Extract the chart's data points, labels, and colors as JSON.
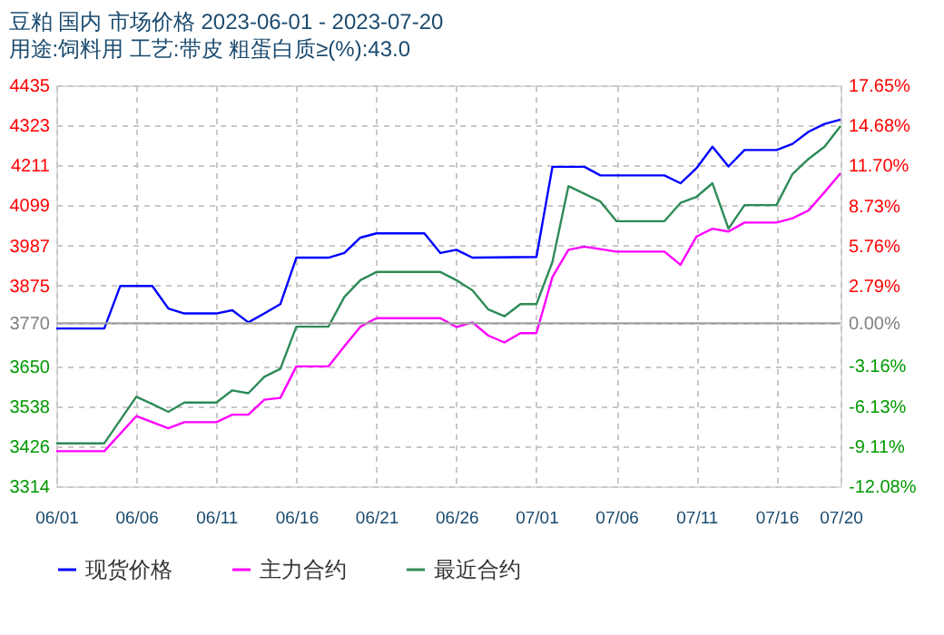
{
  "chart_data": {
    "type": "line",
    "title": "豆粕 国内 市场价格 2023-06-01 - 2023-07-20",
    "subtitle": "用途:饲料用 工艺:带皮 粗蛋白质≥(%):43.0",
    "series": [
      {
        "name": "现货价格",
        "color": "#0000ff",
        "x": [
          "2023-06-01",
          "2023-06-04",
          "2023-06-05",
          "2023-06-07",
          "2023-06-08",
          "2023-06-09",
          "2023-06-11",
          "2023-06-12",
          "2023-06-13",
          "2023-06-14",
          "2023-06-15",
          "2023-06-16",
          "2023-06-18",
          "2023-06-19",
          "2023-06-20",
          "2023-06-21",
          "2023-06-24",
          "2023-06-25",
          "2023-06-26",
          "2023-06-27",
          "2023-07-01",
          "2023-07-02",
          "2023-07-04",
          "2023-07-05",
          "2023-07-09",
          "2023-07-10",
          "2023-07-11",
          "2023-07-12",
          "2023-07-13",
          "2023-07-14",
          "2023-07-16",
          "2023-07-17",
          "2023-07-18",
          "2023-07-19",
          "2023-07-20"
        ],
        "values": [
          3755,
          3755,
          3874,
          3874,
          3811,
          3797,
          3797,
          3806,
          3772,
          3797,
          3823,
          3953,
          3953,
          3966,
          4009,
          4021,
          4021,
          3966,
          3975,
          3953,
          3955,
          4207,
          4207,
          4183,
          4183,
          4161,
          4203,
          4263,
          4208,
          4254,
          4254,
          4271,
          4305,
          4327,
          4339
        ]
      },
      {
        "name": "主力合约",
        "color": "#ff00ff",
        "x": [
          "2023-06-01",
          "2023-06-04",
          "2023-06-06",
          "2023-06-07",
          "2023-06-08",
          "2023-06-09",
          "2023-06-11",
          "2023-06-12",
          "2023-06-13",
          "2023-06-14",
          "2023-06-15",
          "2023-06-16",
          "2023-06-18",
          "2023-06-19",
          "2023-06-20",
          "2023-06-21",
          "2023-06-25",
          "2023-06-26",
          "2023-06-27",
          "2023-06-28",
          "2023-06-29",
          "2023-06-30",
          "2023-07-01",
          "2023-07-02",
          "2023-07-03",
          "2023-07-04",
          "2023-07-06",
          "2023-07-09",
          "2023-07-10",
          "2023-07-11",
          "2023-07-12",
          "2023-07-13",
          "2023-07-14",
          "2023-07-16",
          "2023-07-17",
          "2023-07-18",
          "2023-07-19",
          "2023-07-20"
        ],
        "values": [
          3412,
          3412,
          3510,
          3493,
          3476,
          3493,
          3493,
          3514,
          3514,
          3556,
          3561,
          3649,
          3649,
          3705,
          3760,
          3784,
          3784,
          3759,
          3772,
          3735,
          3716,
          3742,
          3742,
          3899,
          3975,
          3984,
          3970,
          3970,
          3933,
          4012,
          4034,
          4026,
          4051,
          4051,
          4063,
          4085,
          4136,
          4189
        ]
      },
      {
        "name": "最近合约",
        "color": "#2e8b57",
        "x": [
          "2023-06-01",
          "2023-06-04",
          "2023-06-06",
          "2023-06-07",
          "2023-06-08",
          "2023-06-09",
          "2023-06-11",
          "2023-06-12",
          "2023-06-13",
          "2023-06-14",
          "2023-06-15",
          "2023-06-16",
          "2023-06-18",
          "2023-06-19",
          "2023-06-20",
          "2023-06-21",
          "2023-06-25",
          "2023-06-26",
          "2023-06-27",
          "2023-06-28",
          "2023-06-29",
          "2023-06-30",
          "2023-07-01",
          "2023-07-02",
          "2023-07-03",
          "2023-07-05",
          "2023-07-06",
          "2023-07-09",
          "2023-07-10",
          "2023-07-11",
          "2023-07-12",
          "2023-07-13",
          "2023-07-14",
          "2023-07-16",
          "2023-07-17",
          "2023-07-18",
          "2023-07-19",
          "2023-07-20"
        ],
        "values": [
          3434,
          3434,
          3564,
          3544,
          3522,
          3548,
          3548,
          3582,
          3574,
          3620,
          3642,
          3760,
          3760,
          3843,
          3890,
          3913,
          3913,
          3890,
          3862,
          3808,
          3789,
          3823,
          3823,
          3941,
          4153,
          4110,
          4055,
          4055,
          4106,
          4123,
          4161,
          4034,
          4100,
          4100,
          4187,
          4229,
          4263,
          4321
        ]
      }
    ],
    "xlim": [
      "2023-06-01",
      "2023-07-20"
    ],
    "xticks": [
      {
        "value": "2023-06-01",
        "label": "06/01"
      },
      {
        "value": "2023-06-06",
        "label": "06/06"
      },
      {
        "value": "2023-06-11",
        "label": "06/11"
      },
      {
        "value": "2023-06-16",
        "label": "06/16"
      },
      {
        "value": "2023-06-21",
        "label": "06/21"
      },
      {
        "value": "2023-06-26",
        "label": "06/26"
      },
      {
        "value": "2023-07-01",
        "label": "07/01"
      },
      {
        "value": "2023-07-06",
        "label": "07/06"
      },
      {
        "value": "2023-07-11",
        "label": "07/11"
      },
      {
        "value": "2023-07-16",
        "label": "07/16"
      },
      {
        "value": "2023-07-20",
        "label": "07/20"
      }
    ],
    "ylim": [
      3314,
      4435
    ],
    "yticks": [
      3314,
      3426,
      3538,
      3650,
      3770,
      3875,
      3987,
      4099,
      4211,
      4323,
      4435
    ],
    "y2lim": [
      -12.08,
      17.65
    ],
    "y2ticks": [
      {
        "value": -12.08,
        "label": "-12.08%"
      },
      {
        "value": -9.11,
        "label": "-9.11%"
      },
      {
        "value": -6.13,
        "label": "-6.13%"
      },
      {
        "value": -3.16,
        "label": "-3.16%"
      },
      {
        "value": 0,
        "label": "0.00%"
      },
      {
        "value": 2.79,
        "label": "2.79%"
      },
      {
        "value": 5.76,
        "label": "5.76%"
      },
      {
        "value": 8.73,
        "label": "8.73%"
      },
      {
        "value": 11.7,
        "label": "11.70%"
      },
      {
        "value": 14.68,
        "label": "14.68%"
      },
      {
        "value": 17.65,
        "label": "17.65%"
      }
    ],
    "ref_lines": [
      {
        "axis": "y2",
        "value": 0,
        "color": "#a0a0a0"
      }
    ],
    "grid": true,
    "legend": "bottom",
    "marker": "none",
    "line_style": "solid"
  }
}
